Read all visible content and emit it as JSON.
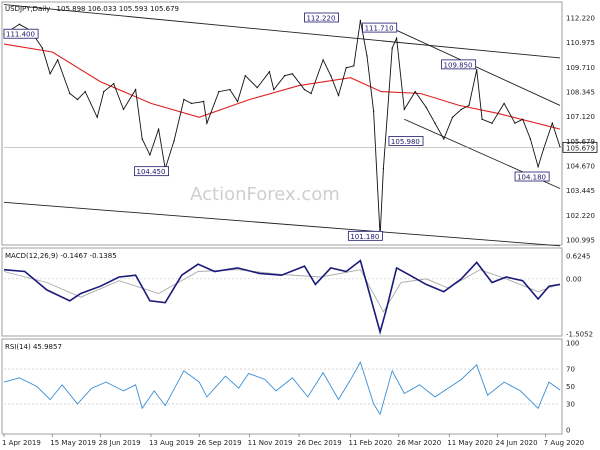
{
  "chart_data": {
    "type": "line",
    "header": {
      "symbol": "USDJPY,Daily",
      "ohlc": "105.898 106.033 105.593 105.679"
    },
    "watermark": "ActionForex.com",
    "colors": {
      "price": "#111111",
      "ema": "#e02020",
      "channel": "#222222",
      "macd": "#1a1a7a",
      "signal": "#aaaaaa",
      "rsi": "#3b8fd6",
      "current_price_box": "#ffffff",
      "label_border": "#1a1a6e"
    },
    "x_axis": {
      "range": [
        "2019-04-01",
        "2020-08-20"
      ],
      "ticks": [
        "1 Apr 2019",
        "15 May 2019",
        "28 Jun 2019",
        "13 Aug 2019",
        "26 Sep 2019",
        "11 Nov 2019",
        "26 Dec 2019",
        "11 Feb 2020",
        "26 Mar 2020",
        "11 May 2020",
        "24 Jun 2020",
        "7 Aug 2020"
      ]
    },
    "price_panel": {
      "ylim": [
        100.995,
        112.22
      ],
      "ticks": [
        "112.220",
        "110.975",
        "109.710",
        "108.345",
        "107.120",
        "105.679",
        "104.670",
        "103.445",
        "102.220",
        "100.995"
      ],
      "current_price": "105.679",
      "close": [
        [
          "2019-04-01",
          111.4
        ],
        [
          "2019-04-15",
          111.9
        ],
        [
          "2019-04-25",
          111.6
        ],
        [
          "2019-05-06",
          110.7
        ],
        [
          "2019-05-13",
          109.4
        ],
        [
          "2019-05-20",
          110.1
        ],
        [
          "2019-05-31",
          108.4
        ],
        [
          "2019-06-07",
          108.1
        ],
        [
          "2019-06-14",
          108.5
        ],
        [
          "2019-06-25",
          107.2
        ],
        [
          "2019-07-01",
          108.5
        ],
        [
          "2019-07-10",
          108.9
        ],
        [
          "2019-07-19",
          107.6
        ],
        [
          "2019-07-30",
          108.6
        ],
        [
          "2019-08-05",
          106.1
        ],
        [
          "2019-08-12",
          105.3
        ],
        [
          "2019-08-20",
          106.6
        ],
        [
          "2019-08-26",
          104.6
        ],
        [
          "2019-09-03",
          106.0
        ],
        [
          "2019-09-12",
          108.1
        ],
        [
          "2019-09-19",
          107.9
        ],
        [
          "2019-09-30",
          108.0
        ],
        [
          "2019-10-03",
          106.9
        ],
        [
          "2019-10-14",
          108.5
        ],
        [
          "2019-10-24",
          108.6
        ],
        [
          "2019-10-31",
          108.0
        ],
        [
          "2019-11-07",
          109.3
        ],
        [
          "2019-11-18",
          108.7
        ],
        [
          "2019-11-29",
          109.5
        ],
        [
          "2019-12-03",
          108.6
        ],
        [
          "2019-12-13",
          109.3
        ],
        [
          "2019-12-20",
          109.4
        ],
        [
          "2019-12-31",
          108.6
        ],
        [
          "2020-01-06",
          108.4
        ],
        [
          "2020-01-17",
          110.1
        ],
        [
          "2020-01-24",
          109.3
        ],
        [
          "2020-01-31",
          108.3
        ],
        [
          "2020-02-07",
          109.7
        ],
        [
          "2020-02-14",
          109.8
        ],
        [
          "2020-02-20",
          112.1
        ],
        [
          "2020-02-26",
          110.3
        ],
        [
          "2020-03-03",
          107.5
        ],
        [
          "2020-03-09",
          101.2
        ],
        [
          "2020-03-12",
          104.6
        ],
        [
          "2020-03-20",
          110.7
        ],
        [
          "2020-03-24",
          111.2
        ],
        [
          "2020-03-31",
          107.6
        ],
        [
          "2020-04-10",
          108.5
        ],
        [
          "2020-04-20",
          107.7
        ],
        [
          "2020-04-28",
          106.9
        ],
        [
          "2020-05-06",
          106.1
        ],
        [
          "2020-05-14",
          107.2
        ],
        [
          "2020-05-22",
          107.6
        ],
        [
          "2020-05-29",
          107.8
        ],
        [
          "2020-06-05",
          109.6
        ],
        [
          "2020-06-10",
          107.1
        ],
        [
          "2020-06-19",
          106.9
        ],
        [
          "2020-06-30",
          107.9
        ],
        [
          "2020-07-10",
          106.9
        ],
        [
          "2020-07-17",
          107.1
        ],
        [
          "2020-07-24",
          106.1
        ],
        [
          "2020-07-31",
          104.7
        ],
        [
          "2020-08-05",
          105.6
        ],
        [
          "2020-08-13",
          106.9
        ],
        [
          "2020-08-20",
          105.7
        ]
      ],
      "ema_55": [
        [
          "2019-04-01",
          110.9
        ],
        [
          "2019-05-15",
          110.5
        ],
        [
          "2019-06-28",
          109.0
        ],
        [
          "2019-08-13",
          107.9
        ],
        [
          "2019-09-26",
          107.2
        ],
        [
          "2019-11-11",
          108.1
        ],
        [
          "2019-12-26",
          108.8
        ],
        [
          "2020-02-11",
          109.2
        ],
        [
          "2020-03-10",
          108.5
        ],
        [
          "2020-04-15",
          108.4
        ],
        [
          "2020-05-20",
          107.8
        ],
        [
          "2020-06-24",
          107.4
        ],
        [
          "2020-08-20",
          106.6
        ]
      ],
      "trendlines": [
        [
          [
            "2019-04-01",
            112.9
          ],
          [
            "2020-08-20",
            110.2
          ]
        ],
        [
          [
            "2019-04-01",
            102.9
          ],
          [
            "2020-08-20",
            100.7
          ]
        ],
        [
          [
            "2020-03-20",
            111.7
          ],
          [
            "2020-08-20",
            107.8
          ]
        ],
        [
          [
            "2020-03-31",
            107.1
          ],
          [
            "2020-08-20",
            103.6
          ]
        ]
      ],
      "labels": [
        {
          "text": "111.400",
          "date": "2019-04-01",
          "value": 111.4
        },
        {
          "text": "112.220",
          "date": "2019-12-31",
          "value": 112.22
        },
        {
          "text": "111.710",
          "date": "2020-02-22",
          "value": 111.71
        },
        {
          "text": "109.850",
          "date": "2020-05-04",
          "value": 109.85
        },
        {
          "text": "105.980",
          "date": "2020-03-17",
          "value": 105.98
        },
        {
          "text": "104.450",
          "date": "2019-07-29",
          "value": 104.45
        },
        {
          "text": "104.180",
          "date": "2020-07-10",
          "value": 104.18
        },
        {
          "text": "101.180",
          "date": "2020-02-09",
          "value": 101.18
        }
      ]
    },
    "macd_panel": {
      "title": "MACD(12,26,9) -0.1467 -0.1385",
      "ticks": [
        "0.6245",
        "0.00",
        "-1.5052"
      ],
      "ylim": [
        -1.5052,
        0.6245
      ],
      "macd": [
        [
          "2019-04-01",
          0.25
        ],
        [
          "2019-04-20",
          0.2
        ],
        [
          "2019-05-10",
          -0.3
        ],
        [
          "2019-05-31",
          -0.6
        ],
        [
          "2019-06-10",
          -0.4
        ],
        [
          "2019-06-28",
          -0.2
        ],
        [
          "2019-07-15",
          0.05
        ],
        [
          "2019-07-30",
          0.1
        ],
        [
          "2019-08-12",
          -0.6
        ],
        [
          "2019-08-26",
          -0.65
        ],
        [
          "2019-09-10",
          0.1
        ],
        [
          "2019-09-25",
          0.4
        ],
        [
          "2019-10-10",
          0.2
        ],
        [
          "2019-10-31",
          0.3
        ],
        [
          "2019-11-20",
          0.15
        ],
        [
          "2019-12-10",
          0.1
        ],
        [
          "2019-12-31",
          0.35
        ],
        [
          "2020-01-10",
          -0.15
        ],
        [
          "2020-01-24",
          0.3
        ],
        [
          "2020-02-07",
          0.2
        ],
        [
          "2020-02-20",
          0.5
        ],
        [
          "2020-03-09",
          -1.45
        ],
        [
          "2020-03-15",
          -0.8
        ],
        [
          "2020-03-24",
          0.3
        ],
        [
          "2020-04-05",
          0.1
        ],
        [
          "2020-04-20",
          -0.15
        ],
        [
          "2020-05-06",
          -0.35
        ],
        [
          "2020-05-22",
          0.0
        ],
        [
          "2020-06-05",
          0.45
        ],
        [
          "2020-06-19",
          -0.1
        ],
        [
          "2020-07-02",
          0.05
        ],
        [
          "2020-07-17",
          -0.05
        ],
        [
          "2020-07-31",
          -0.55
        ],
        [
          "2020-08-10",
          -0.2
        ],
        [
          "2020-08-20",
          -0.15
        ]
      ],
      "signal": [
        [
          "2019-04-01",
          0.2
        ],
        [
          "2019-05-10",
          -0.1
        ],
        [
          "2019-06-10",
          -0.5
        ],
        [
          "2019-07-15",
          -0.05
        ],
        [
          "2019-08-20",
          -0.4
        ],
        [
          "2019-09-25",
          0.2
        ],
        [
          "2019-10-31",
          0.25
        ],
        [
          "2019-12-10",
          0.12
        ],
        [
          "2020-01-15",
          0.05
        ],
        [
          "2020-02-20",
          0.25
        ],
        [
          "2020-03-12",
          -0.9
        ],
        [
          "2020-03-28",
          -0.1
        ],
        [
          "2020-04-20",
          0.0
        ],
        [
          "2020-05-10",
          -0.25
        ],
        [
          "2020-06-08",
          0.25
        ],
        [
          "2020-07-02",
          0.0
        ],
        [
          "2020-07-31",
          -0.35
        ],
        [
          "2020-08-20",
          -0.14
        ]
      ]
    },
    "rsi_panel": {
      "title": "RSI(14) 45.9857",
      "ticks": [
        "100",
        "70",
        "50",
        "30",
        "0"
      ],
      "ylim": [
        0,
        100
      ],
      "rsi": [
        [
          "2019-04-01",
          55
        ],
        [
          "2019-04-15",
          60
        ],
        [
          "2019-05-01",
          50
        ],
        [
          "2019-05-13",
          35
        ],
        [
          "2019-05-24",
          52
        ],
        [
          "2019-06-07",
          30
        ],
        [
          "2019-06-20",
          48
        ],
        [
          "2019-07-03",
          55
        ],
        [
          "2019-07-19",
          45
        ],
        [
          "2019-07-30",
          52
        ],
        [
          "2019-08-05",
          25
        ],
        [
          "2019-08-16",
          45
        ],
        [
          "2019-08-26",
          28
        ],
        [
          "2019-09-12",
          68
        ],
        [
          "2019-09-26",
          55
        ],
        [
          "2019-10-03",
          38
        ],
        [
          "2019-10-20",
          62
        ],
        [
          "2019-11-01",
          48
        ],
        [
          "2019-11-10",
          65
        ],
        [
          "2019-11-25",
          58
        ],
        [
          "2019-12-05",
          45
        ],
        [
          "2019-12-20",
          60
        ],
        [
          "2020-01-03",
          38
        ],
        [
          "2020-01-17",
          66
        ],
        [
          "2020-01-31",
          35
        ],
        [
          "2020-02-12",
          60
        ],
        [
          "2020-02-20",
          78
        ],
        [
          "2020-03-03",
          30
        ],
        [
          "2020-03-09",
          18
        ],
        [
          "2020-03-20",
          68
        ],
        [
          "2020-03-31",
          42
        ],
        [
          "2020-04-14",
          52
        ],
        [
          "2020-04-28",
          38
        ],
        [
          "2020-05-10",
          48
        ],
        [
          "2020-05-22",
          58
        ],
        [
          "2020-06-05",
          75
        ],
        [
          "2020-06-15",
          40
        ],
        [
          "2020-06-30",
          55
        ],
        [
          "2020-07-15",
          45
        ],
        [
          "2020-07-31",
          25
        ],
        [
          "2020-08-10",
          55
        ],
        [
          "2020-08-20",
          45.99
        ]
      ]
    }
  }
}
